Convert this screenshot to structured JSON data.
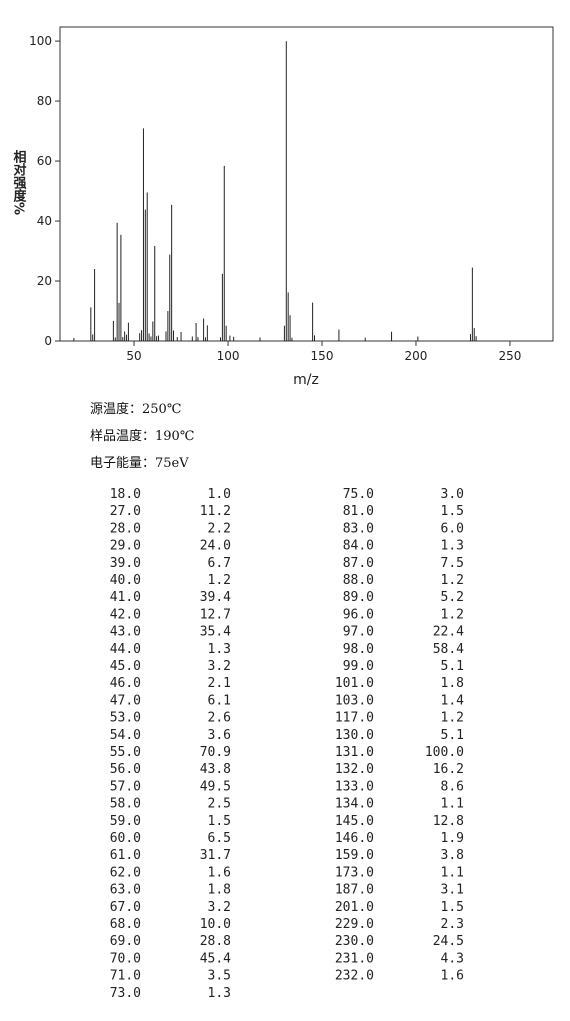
{
  "chart_data": {
    "type": "spectrum",
    "ylabel": "相对强度%",
    "xlabel": "m/z",
    "x": [
      18,
      27,
      28,
      29,
      39,
      40,
      41,
      42,
      43,
      44,
      45,
      46,
      47,
      53,
      54,
      55,
      56,
      57,
      58,
      59,
      60,
      61,
      62,
      63,
      67,
      68,
      69,
      70,
      71,
      73,
      75,
      81,
      83,
      84,
      87,
      88,
      89,
      96,
      97,
      98,
      99,
      101,
      103,
      117,
      130,
      131,
      132,
      133,
      134,
      145,
      146,
      159,
      173,
      187,
      201,
      229,
      230,
      231,
      232
    ],
    "values": [
      1.0,
      11.2,
      2.2,
      24.0,
      6.7,
      1.2,
      39.4,
      12.7,
      35.4,
      1.3,
      3.2,
      2.1,
      6.1,
      2.6,
      3.6,
      70.9,
      43.8,
      49.5,
      2.5,
      1.5,
      6.5,
      31.7,
      1.6,
      1.8,
      3.2,
      10.0,
      28.8,
      45.4,
      3.5,
      1.3,
      3.0,
      1.5,
      6.0,
      1.3,
      7.5,
      1.2,
      5.2,
      1.2,
      22.4,
      58.4,
      5.1,
      1.8,
      1.4,
      1.2,
      5.1,
      100.0,
      16.2,
      8.6,
      1.1,
      12.8,
      1.9,
      3.8,
      1.1,
      3.1,
      1.5,
      2.3,
      24.5,
      4.3,
      1.6
    ],
    "color": "#222222",
    "xlim": [
      10.6,
      272.9
    ],
    "ylim": [
      0,
      104.7
    ],
    "xticks": [
      50,
      100,
      150,
      200,
      250
    ],
    "yticks": [
      0,
      20,
      40,
      60,
      80,
      100
    ]
  },
  "info": [
    "源温度：250℃",
    "样品温度：190℃",
    "电子能量：75eV"
  ],
  "table": {
    "rows": [
      [
        "18.0",
        "1.0"
      ],
      [
        "27.0",
        "11.2"
      ],
      [
        "28.0",
        "2.2"
      ],
      [
        "29.0",
        "24.0"
      ],
      [
        "39.0",
        "6.7"
      ],
      [
        "40.0",
        "1.2"
      ],
      [
        "41.0",
        "39.4"
      ],
      [
        "42.0",
        "12.7"
      ],
      [
        "43.0",
        "35.4"
      ],
      [
        "44.0",
        "1.3"
      ],
      [
        "45.0",
        "3.2"
      ],
      [
        "46.0",
        "2.1"
      ],
      [
        "47.0",
        "6.1"
      ],
      [
        "53.0",
        "2.6"
      ],
      [
        "54.0",
        "3.6"
      ],
      [
        "55.0",
        "70.9"
      ],
      [
        "56.0",
        "43.8"
      ],
      [
        "57.0",
        "49.5"
      ],
      [
        "58.0",
        "2.5"
      ],
      [
        "59.0",
        "1.5"
      ],
      [
        "60.0",
        "6.5"
      ],
      [
        "61.0",
        "31.7"
      ],
      [
        "62.0",
        "1.6"
      ],
      [
        "63.0",
        "1.8"
      ],
      [
        "67.0",
        "3.2"
      ],
      [
        "68.0",
        "10.0"
      ],
      [
        "69.0",
        "28.8"
      ],
      [
        "70.0",
        "45.4"
      ],
      [
        "71.0",
        "3.5"
      ],
      [
        "73.0",
        "1.3"
      ],
      [
        "75.0",
        "3.0"
      ],
      [
        "81.0",
        "1.5"
      ],
      [
        "83.0",
        "6.0"
      ],
      [
        "84.0",
        "1.3"
      ],
      [
        "87.0",
        "7.5"
      ],
      [
        "88.0",
        "1.2"
      ],
      [
        "89.0",
        "5.2"
      ],
      [
        "96.0",
        "1.2"
      ],
      [
        "97.0",
        "22.4"
      ],
      [
        "98.0",
        "58.4"
      ],
      [
        "99.0",
        "5.1"
      ],
      [
        "101.0",
        "1.8"
      ],
      [
        "103.0",
        "1.4"
      ],
      [
        "117.0",
        "1.2"
      ],
      [
        "130.0",
        "5.1"
      ],
      [
        "131.0",
        "100.0"
      ],
      [
        "132.0",
        "16.2"
      ],
      [
        "133.0",
        "8.6"
      ],
      [
        "134.0",
        "1.1"
      ],
      [
        "145.0",
        "12.8"
      ],
      [
        "146.0",
        "1.9"
      ],
      [
        "159.0",
        "3.8"
      ],
      [
        "173.0",
        "1.1"
      ],
      [
        "187.0",
        "3.1"
      ],
      [
        "201.0",
        "1.5"
      ],
      [
        "229.0",
        "2.3"
      ],
      [
        "230.0",
        "24.5"
      ],
      [
        "231.0",
        "4.3"
      ],
      [
        "232.0",
        "1.6"
      ]
    ]
  }
}
